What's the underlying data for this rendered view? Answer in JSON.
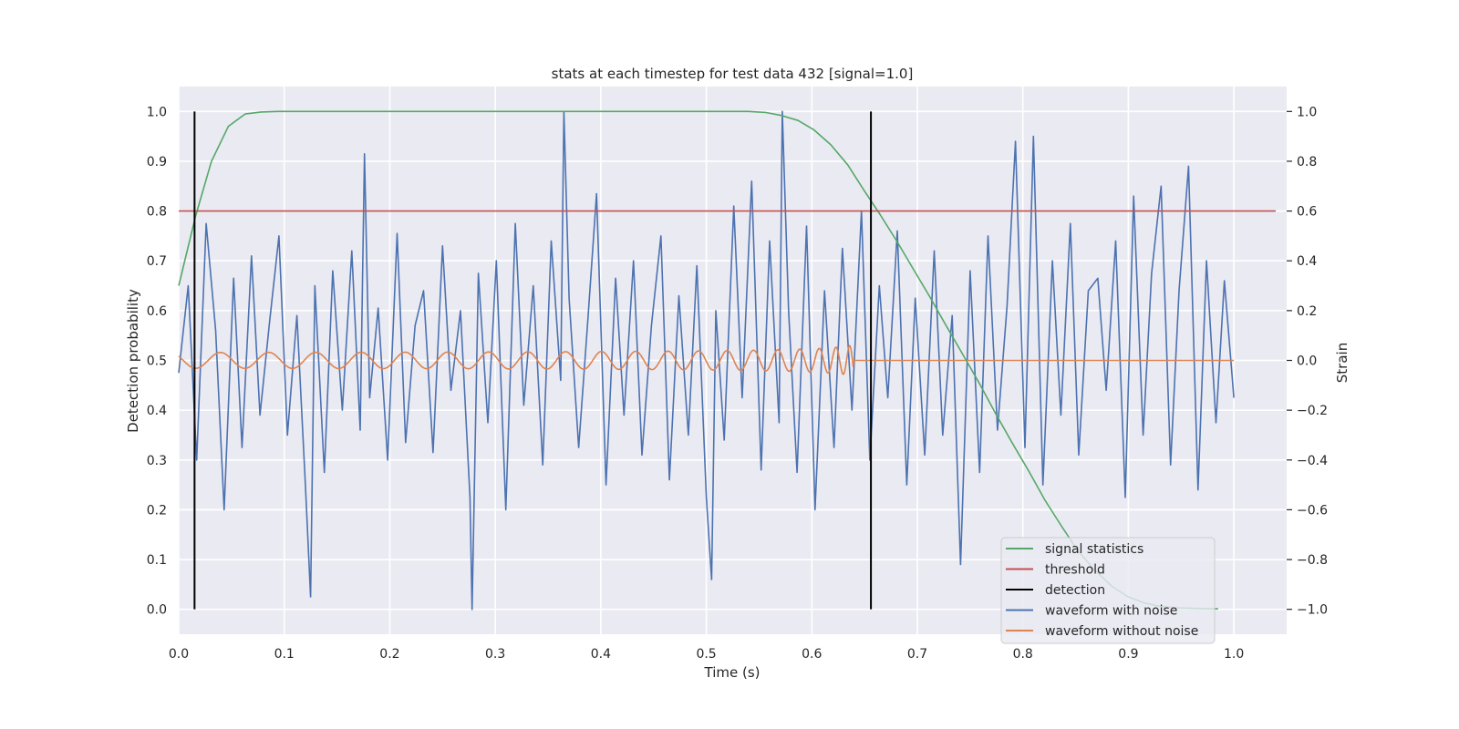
{
  "chart_data": {
    "type": "line",
    "title": "stats at each timestep for test data 432 [signal=1.0]",
    "xlabel": "Time (s)",
    "ylabel": "Detection probability",
    "ylabel_right": "Strain",
    "xlim": [
      0.0,
      1.05
    ],
    "ylim": [
      -0.05,
      1.05
    ],
    "ylim_right": [
      -1.1,
      1.1
    ],
    "x_ticks": [
      0.0,
      0.1,
      0.2,
      0.3,
      0.4,
      0.5,
      0.6,
      0.7,
      0.8,
      0.9,
      1.0
    ],
    "x_tick_labels": [
      "0.0",
      "0.1",
      "0.2",
      "0.3",
      "0.4",
      "0.5",
      "0.6",
      "0.7",
      "0.8",
      "0.9",
      "1.0"
    ],
    "y_ticks": [
      0.0,
      0.1,
      0.2,
      0.3,
      0.4,
      0.5,
      0.6,
      0.7,
      0.8,
      0.9,
      1.0
    ],
    "y_tick_labels": [
      "0.0",
      "0.1",
      "0.2",
      "0.3",
      "0.4",
      "0.5",
      "0.6",
      "0.7",
      "0.8",
      "0.9",
      "1.0"
    ],
    "y_right_ticks": [
      -1.0,
      -0.8,
      -0.6,
      -0.4,
      -0.2,
      0.0,
      0.2,
      0.4,
      0.6,
      0.8,
      1.0
    ],
    "y_right_tick_labels": [
      "−1.0",
      "−0.8",
      "−0.6",
      "−0.4",
      "−0.2",
      "0.0",
      "0.2",
      "0.4",
      "0.6",
      "0.8",
      "1.0"
    ],
    "grid": true,
    "legend_position": "lower-right",
    "series": [
      {
        "name": "signal statistics",
        "color": "#55a868",
        "axis": "left",
        "x": [
          0.0,
          0.016,
          0.031,
          0.047,
          0.063,
          0.078,
          0.094,
          0.11,
          0.2,
          0.3,
          0.4,
          0.5,
          0.54,
          0.556,
          0.571,
          0.587,
          0.602,
          0.618,
          0.634,
          0.649,
          0.665,
          0.681,
          0.696,
          0.712,
          0.727,
          0.743,
          0.759,
          0.774,
          0.79,
          0.806,
          0.821,
          0.837,
          0.852,
          0.868,
          0.884,
          0.899,
          0.915,
          0.93,
          0.946,
          0.962,
          0.977,
          0.985
        ],
        "y": [
          0.65,
          0.79,
          0.9,
          0.97,
          0.995,
          0.999,
          1.0,
          1.0,
          1.0,
          1.0,
          1.0,
          1.0,
          1.0,
          0.998,
          0.992,
          0.982,
          0.963,
          0.933,
          0.893,
          0.843,
          0.792,
          0.738,
          0.684,
          0.627,
          0.571,
          0.512,
          0.453,
          0.394,
          0.334,
          0.276,
          0.219,
          0.166,
          0.118,
          0.079,
          0.047,
          0.026,
          0.013,
          0.006,
          0.003,
          0.002,
          0.001,
          0.001
        ]
      },
      {
        "name": "threshold",
        "color": "#c44e52",
        "axis": "left",
        "x": [
          0.0,
          1.05
        ],
        "y": [
          0.8,
          0.8
        ]
      },
      {
        "name": "detection",
        "color": "#000000",
        "axis": "left",
        "x": [
          0.015,
          0.656
        ],
        "y": [
          1.0,
          1.0
        ]
      },
      {
        "name": "waveform with noise",
        "color": "#4c72b0",
        "axis": "right",
        "x": [
          0.0,
          0.009,
          0.017,
          0.026,
          0.035,
          0.043,
          0.052,
          0.06,
          0.069,
          0.077,
          0.086,
          0.095,
          0.103,
          0.112,
          0.12,
          0.125,
          0.129,
          0.138,
          0.146,
          0.155,
          0.164,
          0.172,
          0.176,
          0.181,
          0.189,
          0.198,
          0.207,
          0.215,
          0.224,
          0.232,
          0.241,
          0.25,
          0.258,
          0.267,
          0.276,
          0.278,
          0.284,
          0.293,
          0.301,
          0.31,
          0.319,
          0.327,
          0.336,
          0.345,
          0.353,
          0.362,
          0.365,
          0.37,
          0.379,
          0.388,
          0.396,
          0.405,
          0.414,
          0.422,
          0.431,
          0.439,
          0.448,
          0.457,
          0.465,
          0.474,
          0.483,
          0.491,
          0.5,
          0.505,
          0.509,
          0.517,
          0.526,
          0.534,
          0.543,
          0.552,
          0.56,
          0.569,
          0.572,
          0.578,
          0.586,
          0.595,
          0.603,
          0.612,
          0.621,
          0.629,
          0.638,
          0.647,
          0.655,
          0.664,
          0.672,
          0.681,
          0.69,
          0.698,
          0.707,
          0.716,
          0.724,
          0.733,
          0.741,
          0.75,
          0.759,
          0.767,
          0.776,
          0.785,
          0.793,
          0.802,
          0.81,
          0.819,
          0.828,
          0.836,
          0.845,
          0.853,
          0.862,
          0.871,
          0.879,
          0.888,
          0.897,
          0.905,
          0.914,
          0.922,
          0.931,
          0.94,
          0.948,
          0.957,
          0.966,
          0.974,
          0.983,
          0.991,
          1.0
        ],
        "y": [
          -0.05,
          0.3,
          -0.4,
          0.55,
          0.12,
          -0.6,
          0.33,
          -0.35,
          0.42,
          -0.22,
          0.15,
          0.5,
          -0.3,
          0.18,
          -0.5,
          -0.95,
          0.3,
          -0.45,
          0.36,
          -0.2,
          0.44,
          -0.28,
          0.83,
          -0.15,
          0.21,
          -0.4,
          0.51,
          -0.33,
          0.14,
          0.28,
          -0.37,
          0.46,
          -0.12,
          0.2,
          -0.55,
          -1.0,
          0.35,
          -0.25,
          0.4,
          -0.6,
          0.55,
          -0.18,
          0.3,
          -0.42,
          0.48,
          -0.08,
          1.0,
          0.25,
          -0.35,
          0.18,
          0.67,
          -0.5,
          0.33,
          -0.22,
          0.4,
          -0.38,
          0.14,
          0.5,
          -0.48,
          0.26,
          -0.3,
          0.38,
          -0.55,
          -0.88,
          0.2,
          -0.32,
          0.62,
          -0.15,
          0.72,
          -0.44,
          0.48,
          -0.25,
          1.0,
          0.2,
          -0.45,
          0.54,
          -0.6,
          0.28,
          -0.35,
          0.45,
          -0.2,
          0.6,
          -0.4,
          0.3,
          -0.15,
          0.52,
          -0.5,
          0.25,
          -0.38,
          0.44,
          -0.3,
          0.18,
          -0.82,
          0.36,
          -0.45,
          0.5,
          -0.28,
          0.22,
          0.88,
          -0.35,
          0.9,
          -0.5,
          0.4,
          -0.22,
          0.55,
          -0.38,
          0.28,
          0.33,
          -0.12,
          0.48,
          -0.55,
          0.66,
          -0.3,
          0.35,
          0.7,
          -0.42,
          0.28,
          0.78,
          -0.52,
          0.4,
          -0.25,
          0.32,
          -0.15
        ]
      },
      {
        "name": "waveform without noise",
        "color": "#dd8452",
        "axis": "right",
        "x": [
          0.0,
          0.64,
          1.0
        ],
        "y": [
          0.0,
          0.0,
          0.0
        ]
      }
    ]
  }
}
